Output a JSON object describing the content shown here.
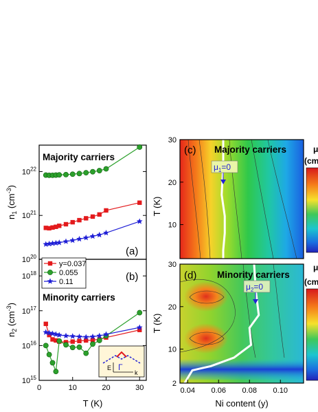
{
  "chart_data": [
    {
      "id": "a",
      "type": "scatter",
      "panel_label": "(a)",
      "title": "Majority carriers",
      "xlabel": "",
      "ylabel": "n1 (cm-3)",
      "ylabel_base": "n",
      "ylabel_sub": "1",
      "ylabel_unit": " (cm",
      "ylabel_sup": "-3",
      "ylabel_close": ")",
      "ylog": true,
      "xlim": [
        0,
        32
      ],
      "ylim": [
        1e+20,
        4e+22
      ],
      "yticks": [
        {
          "v": 1e+20,
          "b": "10",
          "e": "20"
        },
        {
          "v": 1e+21,
          "b": "10",
          "e": "21"
        },
        {
          "v": 1e+22,
          "b": "10",
          "e": "22"
        }
      ],
      "xticks": [
        0,
        10,
        20,
        30
      ],
      "series": [
        {
          "name": "0.055",
          "color": "#2ca02c",
          "marker": "circle",
          "x": [
            2,
            3,
            4,
            5,
            6,
            8,
            10,
            12,
            14,
            16,
            18,
            20,
            30
          ],
          "y": [
            8.3e+21,
            8.2e+21,
            8.2e+21,
            8.3e+21,
            8.4e+21,
            8.5e+21,
            8.7e+21,
            9e+21,
            9.4e+21,
            9.9e+21,
            1.05e+22,
            1.15e+22,
            3.6e+22
          ]
        },
        {
          "name": "y=0.037",
          "color": "#e31a1c",
          "marker": "square",
          "x": [
            2,
            3,
            4,
            5,
            6,
            8,
            10,
            12,
            14,
            16,
            18,
            20,
            30
          ],
          "y": [
            5.2e+20,
            5.1e+20,
            5.3e+20,
            5.5e+20,
            5.8e+20,
            6.3e+20,
            7e+20,
            7.8e+20,
            8.6e+20,
            9.4e+20,
            1.05e+21,
            1.3e+21,
            1.95e+21
          ]
        },
        {
          "name": "0.11",
          "color": "#1f1fd6",
          "marker": "star",
          "x": [
            2,
            3,
            4,
            5,
            6,
            8,
            10,
            12,
            14,
            16,
            18,
            20,
            30
          ],
          "y": [
            2.2e+20,
            2.25e+20,
            2.3e+20,
            2.35e+20,
            2.4e+20,
            2.55e+20,
            2.7e+20,
            2.9e+20,
            3.1e+20,
            3.35e+20,
            3.6e+20,
            4e+20,
            7.3e+20
          ]
        }
      ]
    },
    {
      "id": "b",
      "type": "scatter",
      "panel_label": "(b)",
      "title": "Minority carriers",
      "xlabel": "T (K)",
      "ylabel": "n2 (cm-3)",
      "ylabel_base": "n",
      "ylabel_sub": "2",
      "ylabel_unit": " (cm",
      "ylabel_sup": "-3",
      "ylabel_close": ")",
      "ylog": true,
      "xlim": [
        0,
        32
      ],
      "ylim": [
        1000000000000000.0,
        3e+18
      ],
      "yticks": [
        {
          "v": 1000000000000000.0,
          "b": "10",
          "e": "15"
        },
        {
          "v": 1e+16,
          "b": "10",
          "e": "16"
        },
        {
          "v": 1e+17,
          "b": "10",
          "e": "17"
        },
        {
          "v": 1e+18,
          "b": "10",
          "e": "18"
        }
      ],
      "xticks": [
        0,
        10,
        20,
        30
      ],
      "series": [
        {
          "name": "y=0.037",
          "color": "#e31a1c",
          "marker": "square",
          "x": [
            2,
            3,
            4,
            5,
            6,
            8,
            10,
            12,
            14,
            16,
            18,
            20,
            30
          ],
          "y": [
            4.2e+16,
            2e+16,
            1.5e+16,
            1.4e+16,
            1.3e+16,
            1.25e+16,
            1.3e+16,
            1.35e+16,
            1.4e+16,
            1.45e+16,
            1.5e+16,
            1.7e+16,
            2.8e+16
          ]
        },
        {
          "name": "0.055",
          "color": "#2ca02c",
          "marker": "circle",
          "x": [
            2,
            3,
            4,
            5,
            6,
            8,
            10,
            12,
            14,
            16,
            18,
            20,
            30
          ],
          "y": [
            1e+16,
            5500000000000000.0,
            3200000000000000.0,
            1800000000000000.0,
            1.35e+16,
            1.05e+16,
            8800000000000000.0,
            9000000000000000.0,
            6000000000000000.0,
            1.1e+16,
            1.4e+16,
            1.9e+16,
            8.8e+16
          ]
        },
        {
          "name": "0.11",
          "color": "#1f1fd6",
          "marker": "star",
          "x": [
            2,
            3,
            4,
            5,
            6,
            8,
            10,
            12,
            14,
            16,
            18,
            20,
            30
          ],
          "y": [
            2.4e+16,
            2.3e+16,
            2.2e+16,
            2.1e+16,
            2e+16,
            1.9e+16,
            1.85e+16,
            1.8e+16,
            1.75e+16,
            1.8e+16,
            1.9e+16,
            2.1e+16,
            3.3e+16
          ]
        }
      ],
      "legend": [
        {
          "label": "y=0.037",
          "color": "#e31a1c",
          "marker": "square"
        },
        {
          "label": "0.055",
          "color": "#2ca02c",
          "marker": "circle"
        },
        {
          "label": "0.11",
          "color": "#1f1fd6",
          "marker": "star"
        }
      ],
      "legend_position": "top-left",
      "inset": {
        "e_label": "E",
        "k_label": "k",
        "gamma_label": "Γ"
      }
    },
    {
      "id": "c",
      "type": "heatmap",
      "panel_label": "(c)",
      "title": "Majority carriers",
      "xlabel": "",
      "ylabel": "T (K)",
      "xlim": [
        0.035,
        0.115
      ],
      "ylim": [
        2,
        30
      ],
      "yticks": [
        10,
        20,
        30
      ],
      "colorbar_label": "(cm",
      "colorbar_header": "μ",
      "annotation": {
        "base": "μ",
        "sub": "1",
        "rest": "=0"
      },
      "zero_line": {
        "x": [
          0.063,
          0.063,
          0.062,
          0.064,
          0.064,
          0.063,
          0.063
        ],
        "y": [
          30,
          24,
          17,
          12,
          8,
          4,
          2
        ]
      }
    },
    {
      "id": "d",
      "type": "heatmap",
      "panel_label": "(d)",
      "title": "Minority carriers",
      "xlabel": "Ni content (y)",
      "ylabel": "T (K)",
      "xlim": [
        0.035,
        0.115
      ],
      "ylim": [
        2,
        30
      ],
      "xticks": [
        "0.04",
        "0.06",
        "0.08",
        "0.10"
      ],
      "xtick_values": [
        0.04,
        0.06,
        0.08,
        0.1
      ],
      "yticks": [
        2,
        10,
        20,
        30
      ],
      "colorbar_label": "(cm",
      "colorbar_header": "μ",
      "annotation": {
        "base": "μ",
        "sub": "2",
        "rest": "=0"
      },
      "zero_line": {
        "x": [
          0.083,
          0.084,
          0.086,
          0.08,
          0.081,
          0.07,
          0.055,
          0.043,
          0.038
        ],
        "y": [
          30,
          24,
          18,
          15,
          11,
          8,
          6,
          5,
          2
        ]
      }
    }
  ]
}
